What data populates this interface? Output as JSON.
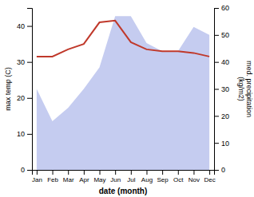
{
  "chart_data": {
    "type": "line",
    "categories": [
      "Jan",
      "Feb",
      "Mar",
      "Apr",
      "May",
      "Jun",
      "Jul",
      "Aug",
      "Sep",
      "Oct",
      "Nov",
      "Dec"
    ],
    "xlabel": "date (month)",
    "ylabel": "max temp (C)",
    "y2label": "med. precipitation\n(kg/m2)",
    "ylim": [
      0,
      45
    ],
    "yticks": [
      0,
      10,
      20,
      30,
      40
    ],
    "y2lim": [
      0,
      60
    ],
    "y2ticks": [
      0,
      10,
      20,
      30,
      40,
      50,
      60
    ],
    "series": [
      {
        "type": "area",
        "axis": "y2",
        "color": "#c5ccf0",
        "values": [
          30,
          18,
          23,
          30,
          38,
          57,
          57,
          47,
          44,
          44,
          53,
          50
        ]
      },
      {
        "type": "line",
        "color": "#c0392b",
        "values": [
          31.5,
          31.5,
          33.5,
          35.0,
          41.0,
          41.5,
          35.5,
          33.5,
          33.0,
          33.0,
          32.5,
          31.5
        ]
      }
    ]
  }
}
